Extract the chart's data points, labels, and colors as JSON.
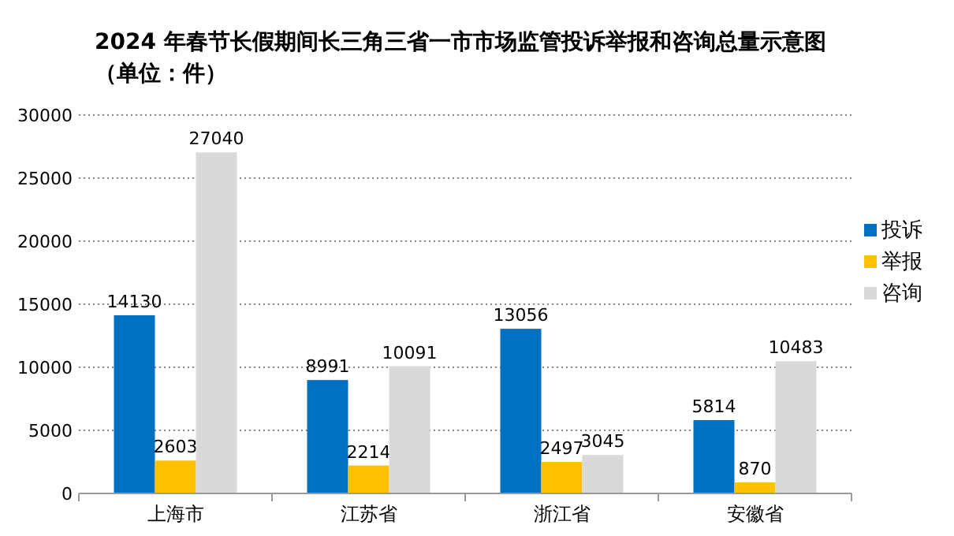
{
  "chart_data": {
    "type": "bar",
    "title": "2024 年春节长假期间长三角三省一市市场监管投诉举报和咨询总量示意图",
    "subtitle": "（单位：件）",
    "categories": [
      "上海市",
      "江苏省",
      "浙江省",
      "安徽省"
    ],
    "series": [
      {
        "name": "投诉",
        "color": "#0070c0",
        "values": [
          14130,
          8991,
          13056,
          5814
        ]
      },
      {
        "name": "举报",
        "color": "#ffc000",
        "values": [
          2603,
          2214,
          2497,
          870
        ]
      },
      {
        "name": "咨询",
        "color": "#d9d9d9",
        "values": [
          27040,
          10091,
          3045,
          10483
        ]
      }
    ],
    "ylim": [
      0,
      30000
    ],
    "yticks": [
      0,
      5000,
      10000,
      15000,
      20000,
      25000,
      30000
    ],
    "grid": "y",
    "legend": "right",
    "data_labels": true
  }
}
